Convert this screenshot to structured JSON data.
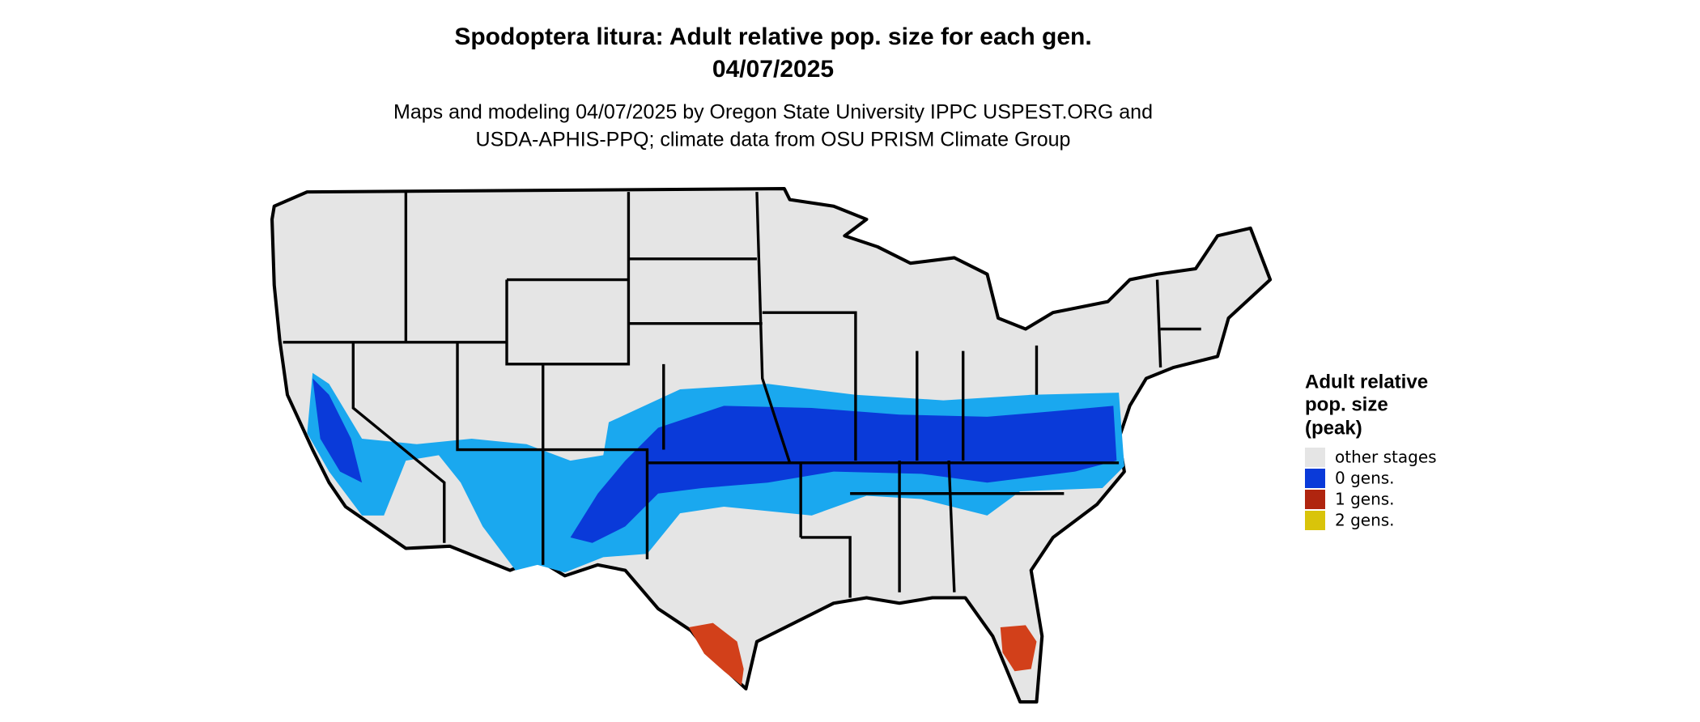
{
  "title": "Spodoptera litura: Adult relative pop. size for each gen.",
  "date": "04/07/2025",
  "subtitle": [
    "Maps and modeling 04/07/2025 by Oregon State University IPPC USPEST.ORG and",
    "USDA-APHIS-PPQ; climate data from OSU PRISM Climate Group"
  ],
  "legend": {
    "title": [
      "Adult relative",
      "pop. size",
      "(peak)"
    ],
    "items": [
      {
        "label": "other stages",
        "color": "#e5e5e5"
      },
      {
        "label": "0 gens.",
        "color": "#0a3ad9"
      },
      {
        "label": "1 gens.",
        "color": "#b0250f"
      },
      {
        "label": "2 gens.",
        "color": "#d9c40a"
      }
    ]
  }
}
